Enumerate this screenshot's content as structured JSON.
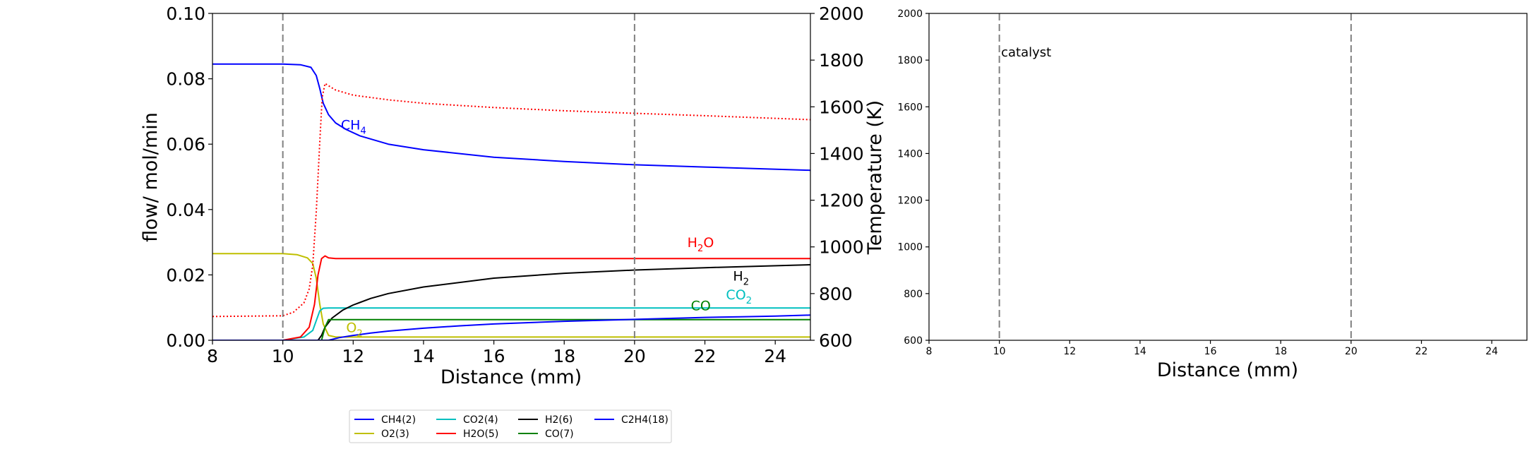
{
  "chart_data": [
    {
      "type": "line",
      "xlabel": "Distance (mm)",
      "ylabel": "flow/ mol/min",
      "y2label": "Temperature (K)",
      "xlim": [
        8,
        25
      ],
      "ylim": [
        0,
        0.1
      ],
      "y2lim": [
        600,
        2000
      ],
      "xticks": [
        "8",
        "10",
        "12",
        "14",
        "16",
        "18",
        "20",
        "22",
        "24"
      ],
      "yticks": [
        "0.00",
        "0.02",
        "0.04",
        "0.06",
        "0.08",
        "0.10"
      ],
      "y2ticks": [
        "600",
        "800",
        "1000",
        "1200",
        "1400",
        "1600",
        "1800",
        "2000"
      ],
      "vlines": [
        10,
        20
      ],
      "grid": false,
      "legend": {
        "placement": "bottom-center",
        "entries": [
          {
            "label": "CH4(2)",
            "color": "#0000ff"
          },
          {
            "label": "O2(3)",
            "color": "#bfbf00"
          },
          {
            "label": "CO2(4)",
            "color": "#00bfbf"
          },
          {
            "label": "H2O(5)",
            "color": "#ff0000"
          },
          {
            "label": "H2(6)",
            "color": "#000000"
          },
          {
            "label": "CO(7)",
            "color": "#008000"
          },
          {
            "label": "C2H4(18)",
            "color": "#0000ff"
          }
        ]
      },
      "annotations": [
        {
          "base": "CH",
          "sub": "4",
          "x": 11.65,
          "y": 0.0645,
          "color": "#0000ff"
        },
        {
          "base": "H",
          "sub": "2",
          "post": "O",
          "x": 21.5,
          "y": 0.0285,
          "color": "#ff0000"
        },
        {
          "base": "H",
          "sub": "2",
          "x": 22.8,
          "y": 0.0182,
          "color": "#000000"
        },
        {
          "base": "CO",
          "sub": "2",
          "x": 22.6,
          "y": 0.0125,
          "color": "#00bfbf"
        },
        {
          "base": "CO",
          "x": 21.6,
          "y": 0.0092,
          "color": "#008000"
        },
        {
          "base": "O",
          "sub": "2",
          "x": 11.8,
          "y": 0.0025,
          "color": "#bfbf00"
        }
      ],
      "series": [
        {
          "name": "CH4(2)",
          "color": "#0000ff",
          "style": "solid",
          "x": [
            8,
            10,
            10.5,
            10.8,
            10.95,
            11.05,
            11.15,
            11.3,
            11.5,
            11.8,
            12.2,
            13,
            14,
            16,
            18,
            20,
            22,
            25
          ],
          "y": [
            0.0845,
            0.0845,
            0.0843,
            0.0835,
            0.081,
            0.077,
            0.0725,
            0.069,
            0.0665,
            0.0645,
            0.0625,
            0.06,
            0.0583,
            0.056,
            0.0547,
            0.0537,
            0.053,
            0.052
          ]
        },
        {
          "name": "O2(3)",
          "color": "#bfbf00",
          "style": "solid",
          "x": [
            8,
            10,
            10.4,
            10.7,
            10.85,
            10.95,
            11.05,
            11.15,
            11.3,
            11.5,
            12,
            25
          ],
          "y": [
            0.0265,
            0.0265,
            0.0262,
            0.0252,
            0.0235,
            0.019,
            0.011,
            0.005,
            0.0015,
            0.001,
            0.001,
            0.001
          ]
        },
        {
          "name": "CO2(4)",
          "color": "#00bfbf",
          "style": "solid",
          "x": [
            8,
            10,
            10.6,
            10.85,
            10.95,
            11.05,
            11.15,
            11.3,
            25
          ],
          "y": [
            0,
            0,
            0.001,
            0.003,
            0.006,
            0.009,
            0.0098,
            0.0099,
            0.0099
          ]
        },
        {
          "name": "H2O(5)",
          "color": "#ff0000",
          "style": "solid",
          "x": [
            8,
            10,
            10.5,
            10.75,
            10.9,
            11.0,
            11.1,
            11.2,
            11.3,
            11.5,
            25
          ],
          "y": [
            0,
            0,
            0.001,
            0.004,
            0.011,
            0.02,
            0.025,
            0.0258,
            0.0252,
            0.025,
            0.025
          ]
        },
        {
          "name": "H2(6)",
          "color": "#000000",
          "style": "solid",
          "x": [
            8,
            11.0,
            11.1,
            11.2,
            11.4,
            11.7,
            12,
            12.5,
            13,
            14,
            16,
            18,
            20,
            22,
            25
          ],
          "y": [
            0,
            0,
            0.0015,
            0.004,
            0.0068,
            0.0092,
            0.0108,
            0.0128,
            0.0143,
            0.0163,
            0.019,
            0.0205,
            0.0215,
            0.0222,
            0.0231
          ]
        },
        {
          "name": "CO(7)",
          "color": "#008000",
          "style": "solid",
          "x": [
            8,
            11.1,
            11.2,
            11.3,
            25
          ],
          "y": [
            0,
            0,
            0.004,
            0.0063,
            0.0063
          ]
        },
        {
          "name": "C2H4(18)",
          "color": "#0000ff",
          "style": "solid",
          "x": [
            8,
            11.3,
            11.6,
            12,
            12.5,
            13,
            14,
            15,
            16,
            17,
            18,
            19,
            20,
            21,
            22,
            23,
            24,
            25
          ],
          "y": [
            0,
            0,
            0.0008,
            0.0015,
            0.0022,
            0.0028,
            0.0037,
            0.0044,
            0.005,
            0.0054,
            0.0058,
            0.0061,
            0.0064,
            0.0067,
            0.007,
            0.0072,
            0.0074,
            0.0077
          ]
        },
        {
          "name": "Temperature",
          "color": "#ff0000",
          "style": "dotted",
          "axis": "right",
          "x": [
            8,
            10,
            10.3,
            10.6,
            10.75,
            10.85,
            10.95,
            11.05,
            11.12,
            11.2,
            11.3,
            11.5,
            12,
            13,
            14,
            16,
            18,
            20,
            22,
            25
          ],
          "y": [
            702,
            705,
            720,
            760,
            820,
            920,
            1150,
            1450,
            1640,
            1700,
            1690,
            1672,
            1650,
            1630,
            1615,
            1597,
            1583,
            1572,
            1562,
            1545
          ]
        }
      ]
    },
    {
      "type": "line",
      "xlabel": "Distance (mm)",
      "ylabel": "",
      "xlim": [
        8,
        25
      ],
      "ylim": [
        600,
        2000
      ],
      "xticks": [
        "8",
        "10",
        "12",
        "14",
        "16",
        "18",
        "20",
        "22",
        "24"
      ],
      "yticks": [
        "600",
        "800",
        "1000",
        "1200",
        "1400",
        "1600",
        "1800",
        "2000"
      ],
      "vlines": [
        10,
        20
      ],
      "grid": false,
      "annotations": [
        {
          "base": "catalyst",
          "x": 10.05,
          "y": 1815,
          "color": "#000000"
        }
      ],
      "series": []
    }
  ]
}
